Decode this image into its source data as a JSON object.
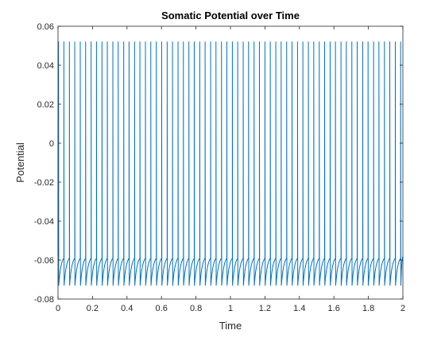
{
  "chart_data": {
    "type": "line",
    "title": "Somatic Potential over Time",
    "xlabel": "Time",
    "ylabel": "Potential",
    "xlim": [
      0,
      2
    ],
    "ylim": [
      -0.08,
      0.06
    ],
    "xticks": [
      "0",
      "0.2",
      "0.4",
      "0.6",
      "0.8",
      "1",
      "1.2",
      "1.4",
      "1.6",
      "1.8",
      "2"
    ],
    "yticks": [
      "-0.08",
      "-0.06",
      "-0.04",
      "-0.02",
      "0",
      "0.02",
      "0.04",
      "0.06"
    ],
    "grid": false,
    "legend": "none",
    "series": [
      {
        "color": "#0072BD",
        "spike_times": [
          0.003,
          0.034,
          0.066,
          0.097,
          0.129,
          0.16,
          0.192,
          0.223,
          0.255,
          0.286,
          0.318,
          0.349,
          0.381,
          0.412,
          0.444,
          0.475,
          0.507,
          0.538,
          0.57,
          0.601,
          0.633,
          0.664,
          0.696,
          0.727,
          0.759,
          0.79,
          0.822,
          0.853,
          0.885,
          0.916,
          0.948,
          0.979,
          1.011,
          1.042,
          1.074,
          1.105,
          1.137,
          1.168,
          1.2,
          1.231,
          1.263,
          1.294,
          1.326,
          1.357,
          1.389,
          1.42,
          1.452,
          1.483,
          1.515,
          1.546,
          1.578,
          1.609,
          1.641,
          1.672,
          1.704,
          1.735,
          1.767,
          1.798,
          1.83,
          1.861,
          1.893,
          1.924,
          1.956,
          1.987
        ],
        "peak_value": 0.052,
        "reset_value": -0.073,
        "threshold_value": -0.059,
        "initial_value": -0.058,
        "final_value": -0.058
      }
    ]
  }
}
